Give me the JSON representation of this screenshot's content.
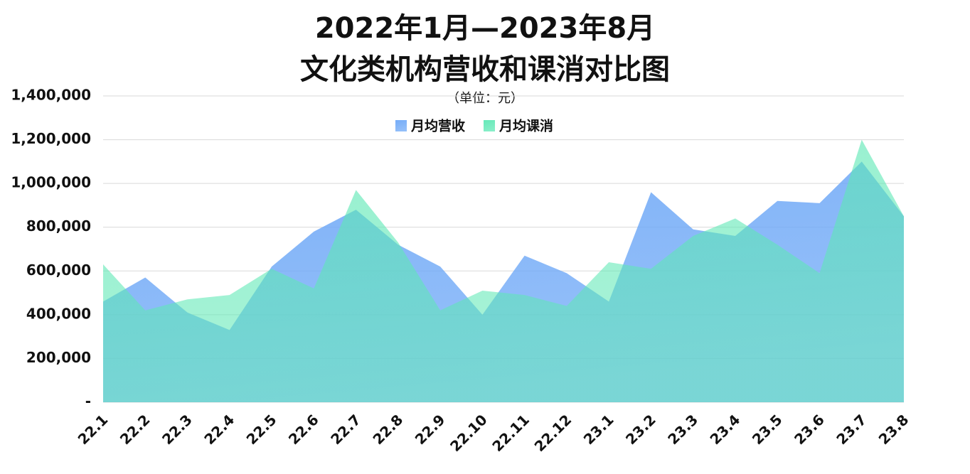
{
  "chart_data": {
    "type": "area",
    "title": [
      "2022年1月—2023年8月",
      "文化类机构营收和课消对比图"
    ],
    "subtitle": "（单位：元）",
    "categories": [
      "22.1",
      "22.2",
      "22.3",
      "22.4",
      "22.5",
      "22.6",
      "22.7",
      "22.8",
      "22.9",
      "22.10",
      "22.11",
      "22.12",
      "23.1",
      "23.2",
      "23.3",
      "23.4",
      "23.5",
      "23.6",
      "23.7",
      "23.8"
    ],
    "series": [
      {
        "name": "月均营收",
        "color": "#6ea8f7",
        "values": [
          460000,
          570000,
          410000,
          330000,
          620000,
          780000,
          880000,
          720000,
          620000,
          400000,
          670000,
          590000,
          460000,
          960000,
          790000,
          760000,
          920000,
          910000,
          1100000,
          850000
        ]
      },
      {
        "name": "月均课消",
        "color": "#5ee8b5",
        "values": [
          630000,
          420000,
          470000,
          490000,
          610000,
          520000,
          970000,
          730000,
          420000,
          510000,
          490000,
          440000,
          640000,
          610000,
          760000,
          840000,
          720000,
          590000,
          1200000,
          850000
        ]
      }
    ],
    "ylim": [
      0,
      1400000
    ],
    "yticks": [
      {
        "value": 0,
        "label": "-"
      },
      {
        "value": 200000,
        "label": "200,000"
      },
      {
        "value": 400000,
        "label": "400,000"
      },
      {
        "value": 600000,
        "label": "600,000"
      },
      {
        "value": 800000,
        "label": "800,000"
      },
      {
        "value": 1000000,
        "label": "1,000,000"
      },
      {
        "value": 1200000,
        "label": "1,200,000"
      },
      {
        "value": 1400000,
        "label": "1,400,000"
      }
    ],
    "grid": true,
    "legend": "top"
  }
}
